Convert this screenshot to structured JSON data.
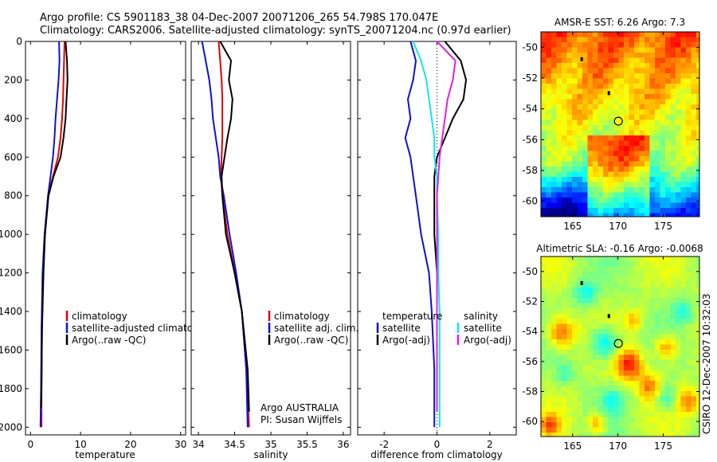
{
  "header": {
    "line1": "Argo profile: CS 5901183_38 04-Dec-2007 20071206_265 54.798S 170.047E",
    "line2": "Climatology: CARS2006. Satellite-adjusted climatology: synTS_20071204.nc (0.97d earlier)"
  },
  "footer_note": "CSIRO 12-Dec-2007 10:32:03",
  "colors": {
    "climatology": "#e00000",
    "satellite": "#1010d0",
    "argo": "#000000",
    "sal_satellite": "#10e8e8",
    "sal_argo": "#e020e0"
  },
  "chart_data": [
    {
      "type": "line",
      "xlabel": "temperature",
      "xlim": [
        -1,
        31
      ],
      "xticks": [
        "0",
        "10",
        "20",
        "30"
      ],
      "xtick_values": [
        0,
        10,
        20,
        30
      ],
      "ylim": [
        0,
        2040
      ],
      "yticks": [
        "0",
        "200",
        "400",
        "600",
        "800",
        "1000",
        "1200",
        "1400",
        "1600",
        "1800",
        "2000"
      ],
      "ytick_values": [
        0,
        200,
        400,
        600,
        800,
        1000,
        1200,
        1400,
        1600,
        1800,
        2000
      ],
      "legend": [
        "climatology",
        "satellite-adjusted climatology",
        "Argo(..raw -QC)"
      ],
      "series": [
        {
          "name": "climatology",
          "color": "#e00000",
          "x": [
            6.8,
            6.7,
            6.6,
            6.5,
            6.3,
            6.0,
            5.5,
            4.5,
            3.5,
            2.9,
            2.5,
            2.3,
            2.2,
            2.2
          ],
          "y": [
            0,
            100,
            200,
            300,
            400,
            500,
            600,
            700,
            800,
            1000,
            1200,
            1500,
            1800,
            2000
          ]
        },
        {
          "name": "satellite-adjusted climatology",
          "color": "#1010d0",
          "x": [
            5.7,
            5.8,
            5.6,
            5.3,
            5.0,
            4.8,
            4.5,
            4.0,
            3.5,
            2.8,
            2.4,
            2.2,
            2.1,
            2.0
          ],
          "y": [
            0,
            100,
            200,
            300,
            400,
            500,
            600,
            700,
            800,
            1000,
            1200,
            1500,
            1800,
            2000
          ]
        },
        {
          "name": "Argo(..raw -QC)",
          "color": "#000000",
          "x": [
            7.0,
            7.3,
            7.4,
            7.2,
            7.0,
            6.6,
            6.0,
            4.6,
            3.6,
            2.9,
            2.6,
            2.3,
            2.2,
            2.1
          ],
          "y": [
            0,
            100,
            200,
            300,
            400,
            500,
            600,
            700,
            800,
            1000,
            1200,
            1500,
            1800,
            1900
          ]
        }
      ]
    },
    {
      "type": "line",
      "xlabel": "salinity",
      "xlim": [
        33.9,
        36.1
      ],
      "xticks": [
        "34",
        "34.5",
        "35",
        "35.5",
        "36"
      ],
      "xtick_values": [
        34,
        34.5,
        35,
        35.5,
        36
      ],
      "ylim": [
        0,
        2040
      ],
      "legend": [
        "climatology",
        "satellite adj. clim.",
        "Argo(..raw -QC)"
      ],
      "notes": [
        "Argo AUSTRALIA",
        "PI: Susan Wijffels"
      ],
      "series": [
        {
          "name": "climatology",
          "color": "#e00000",
          "x": [
            34.28,
            34.3,
            34.32,
            34.33,
            34.33,
            34.33,
            34.32,
            34.31,
            34.33,
            34.4,
            34.5,
            34.6,
            34.66,
            34.7
          ],
          "y": [
            0,
            100,
            200,
            300,
            400,
            500,
            600,
            700,
            800,
            1000,
            1200,
            1400,
            1700,
            2000
          ]
        },
        {
          "name": "satellite adj. clim.",
          "color": "#1010d0",
          "x": [
            34.05,
            34.1,
            34.15,
            34.18,
            34.2,
            34.24,
            34.28,
            34.3,
            34.35,
            34.43,
            34.52,
            34.6,
            34.66,
            34.68
          ],
          "y": [
            0,
            100,
            200,
            300,
            400,
            500,
            600,
            700,
            800,
            1000,
            1200,
            1400,
            1700,
            2000
          ]
        },
        {
          "name": "Argo(..raw -QC)",
          "color": "#000000",
          "x": [
            34.3,
            34.45,
            34.42,
            34.47,
            34.45,
            34.4,
            34.36,
            34.32,
            34.33,
            34.38,
            34.5,
            34.6,
            34.68,
            34.7
          ],
          "y": [
            0,
            100,
            200,
            300,
            400,
            500,
            600,
            700,
            800,
            1000,
            1200,
            1400,
            1700,
            1920
          ]
        }
      ]
    },
    {
      "type": "line",
      "xlabel": "difference from climatology",
      "xlim": [
        -3,
        3
      ],
      "xticks": [
        "-2",
        "0",
        "2"
      ],
      "xtick_values": [
        -2,
        0,
        2
      ],
      "ylim": [
        0,
        2040
      ],
      "legend_titles": [
        "temperature",
        "salinity"
      ],
      "legend": [
        "satellite",
        "Argo(-adj)",
        "satellite",
        "Argo(-adj)"
      ],
      "series": [
        {
          "name": "satellite",
          "group": "temperature",
          "color": "#1010d0",
          "x": [
            -1.0,
            -0.8,
            -0.9,
            -1.1,
            -1.0,
            -1.2,
            -1.0,
            -0.9,
            -0.8,
            -0.6,
            -0.3,
            -0.2,
            -0.1,
            -0.1
          ],
          "y": [
            0,
            100,
            200,
            300,
            400,
            500,
            600,
            700,
            800,
            1000,
            1200,
            1400,
            1700,
            2000
          ]
        },
        {
          "name": "Argo(-adj)",
          "group": "temperature",
          "color": "#000000",
          "x": [
            0.3,
            0.9,
            1.1,
            1.0,
            0.6,
            0.3,
            0.0,
            -0.1,
            -0.1,
            -0.1,
            0.0,
            0.0,
            0.0,
            0.0
          ],
          "y": [
            0,
            100,
            200,
            300,
            400,
            500,
            600,
            700,
            800,
            1000,
            1200,
            1400,
            1700,
            1920
          ]
        },
        {
          "name": "satellite",
          "group": "salinity",
          "color": "#10e8e8",
          "x": [
            -0.9,
            -0.6,
            -0.4,
            -0.3,
            -0.2,
            -0.1,
            -0.1,
            0.0,
            0.0,
            0.05,
            0.05,
            0.1,
            0.1,
            0.1
          ],
          "y": [
            0,
            100,
            200,
            300,
            400,
            500,
            600,
            700,
            800,
            1000,
            1200,
            1400,
            1700,
            2000
          ]
        },
        {
          "name": "Argo(-adj)",
          "group": "salinity",
          "color": "#e020e0",
          "x": [
            0.0,
            0.7,
            0.6,
            0.4,
            0.3,
            0.2,
            0.1,
            0.05,
            0.0,
            0.0,
            0.0,
            0.0,
            0.0,
            0.0
          ],
          "y": [
            0,
            100,
            200,
            300,
            400,
            500,
            600,
            700,
            800,
            1000,
            1200,
            1400,
            1700,
            1920
          ]
        }
      ]
    },
    {
      "type": "heatmap",
      "title": "AMSR-E SST: 6.26 Argo: 7.3",
      "xlim": [
        161.5,
        179
      ],
      "ylim": [
        -61,
        -49
      ],
      "xticks": [
        "165",
        "170",
        "175"
      ],
      "xtick_values": [
        165,
        170,
        175
      ],
      "yticks": [
        "-50",
        "-52",
        "-54",
        "-56",
        "-58",
        "-60"
      ],
      "ytick_values": [
        -50,
        -52,
        -54,
        -56,
        -58,
        -60
      ],
      "marker": {
        "lon": 170.047,
        "lat": -54.798
      },
      "track": [
        {
          "lon": 166.0,
          "lat": -50.8
        },
        {
          "lon": 169.0,
          "lat": -53.0
        }
      ]
    },
    {
      "type": "heatmap",
      "title": "Altimetric SLA: -0.16 Argo: -0.0068",
      "xlim": [
        161.5,
        179
      ],
      "ylim": [
        -61,
        -49
      ],
      "xticks": [
        "165",
        "170",
        "175"
      ],
      "xtick_values": [
        165,
        170,
        175
      ],
      "yticks": [
        "-50",
        "-52",
        "-54",
        "-56",
        "-58",
        "-60"
      ],
      "ytick_values": [
        -50,
        -52,
        -54,
        -56,
        -58,
        -60
      ],
      "marker": {
        "lon": 170.047,
        "lat": -54.798
      },
      "track": [
        {
          "lon": 166.0,
          "lat": -50.8
        },
        {
          "lon": 169.0,
          "lat": -53.0
        }
      ]
    }
  ]
}
